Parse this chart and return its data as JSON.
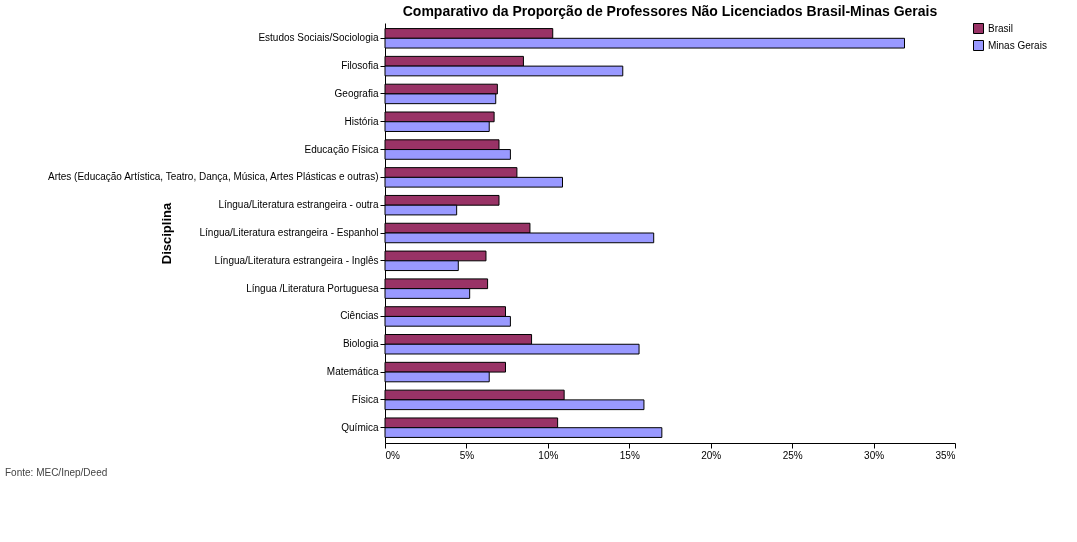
{
  "chart_data": {
    "type": "bar",
    "orientation": "horizontal",
    "title": "Comparativo da Proporção de Professores Não Licenciados Brasil-Minas Gerais",
    "ylabel": "Disciplina",
    "categories": [
      "Estudos Sociais/Sociologia",
      "Filosofia",
      "Geografia",
      "História",
      "Educação Física",
      "Artes (Educação Artística, Teatro, Dança, Música, Artes Plásticas e outras)",
      "Língua/Literatura estrangeira - outra",
      "Língua/Literatura estrangeira - Espanhol",
      "Língua/Literatura estrangeira - Inglês",
      "Língua /Literatura Portuguesa",
      "Ciências",
      "Biologia",
      "Matemática",
      "Física",
      "Química"
    ],
    "series": [
      {
        "name": "Brasil",
        "color": "#993366",
        "values": [
          10.3,
          8.5,
          6.9,
          6.7,
          7.0,
          8.1,
          7.0,
          8.9,
          6.2,
          6.3,
          7.4,
          9.0,
          7.4,
          11.0,
          10.6
        ]
      },
      {
        "name": "Minas Gerais",
        "color": "#9999ff",
        "values": [
          31.9,
          14.6,
          6.8,
          6.4,
          7.7,
          10.9,
          4.4,
          16.5,
          4.5,
          5.2,
          7.7,
          15.6,
          6.4,
          15.9,
          17.0
        ]
      }
    ],
    "xlim": [
      0,
      35
    ],
    "xticks": [
      {
        "value": 0,
        "label": "0%"
      },
      {
        "value": 5,
        "label": "5%"
      },
      {
        "value": 10,
        "label": "10%"
      },
      {
        "value": 15,
        "label": "15%"
      },
      {
        "value": 20,
        "label": "20%"
      },
      {
        "value": 25,
        "label": "25%"
      },
      {
        "value": 30,
        "label": "30%"
      },
      {
        "value": 35,
        "label": "35%"
      }
    ],
    "legend": "right",
    "grid": false,
    "annotations": [
      "Fonte: MEC/Inep/Deed"
    ]
  }
}
